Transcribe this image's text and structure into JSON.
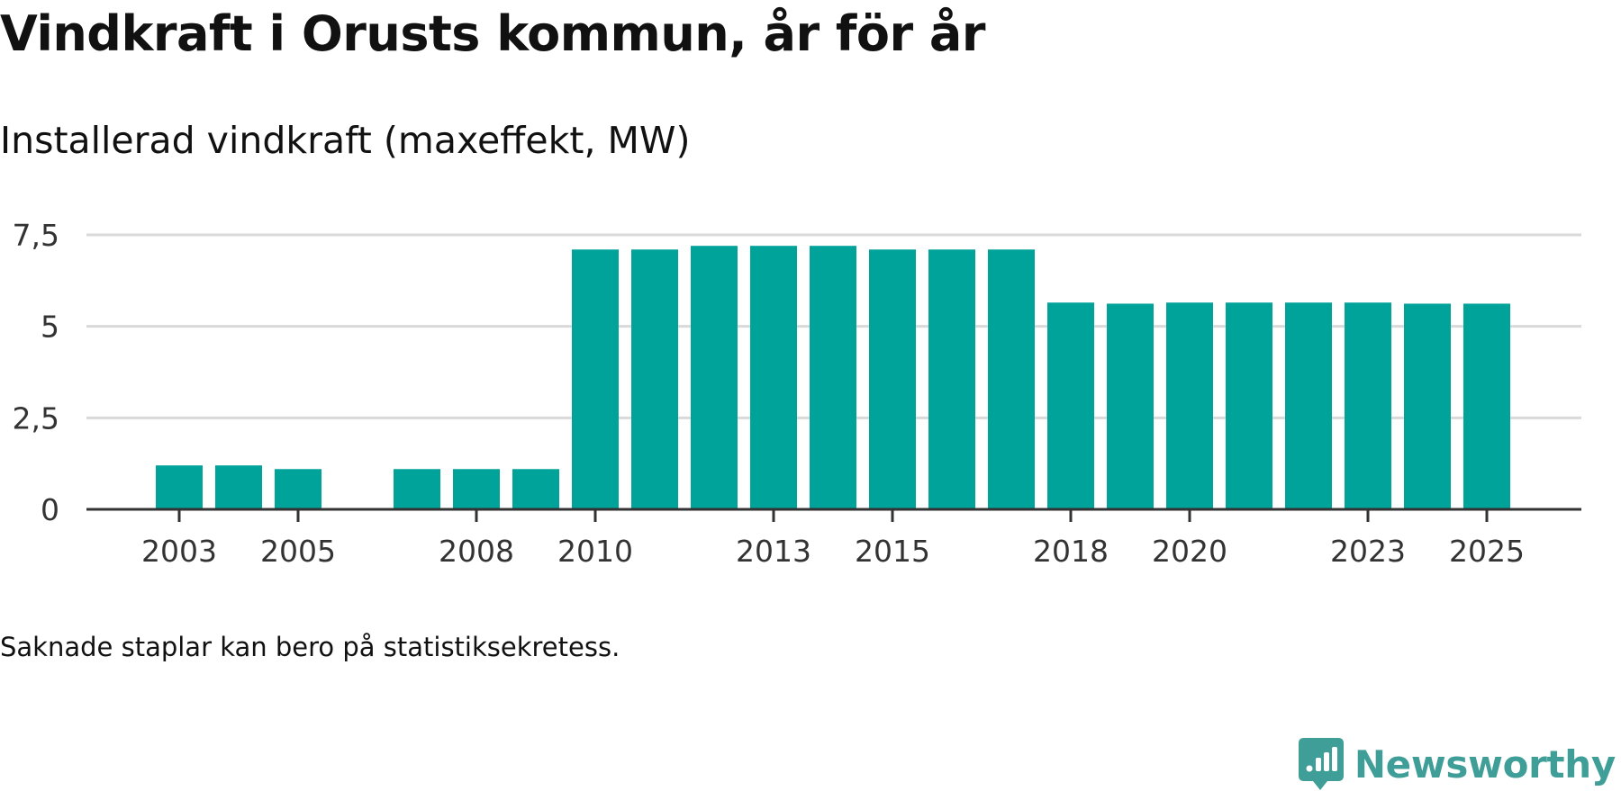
{
  "header": {
    "title": "Vindkraft i Orusts kommun, år för år",
    "subtitle": "Installerad vindkraft (maxeffekt, MW)"
  },
  "footer": {
    "note": "Saknade staplar kan bero på statistiksekretess.",
    "brand": "Newsworthy",
    "brand_icon": "newsworthy-logo-icon"
  },
  "colors": {
    "bar": "#00a39a",
    "grid": "#d9d9d9",
    "axis": "#333333",
    "brand": "#3f9f98"
  },
  "chart_data": {
    "type": "bar",
    "title": "Vindkraft i Orusts kommun, år för år",
    "subtitle": "Installerad vindkraft (maxeffekt, MW)",
    "xlabel": "",
    "ylabel": "",
    "categories": [
      "2003",
      "2004",
      "2005",
      "2006",
      "2007",
      "2008",
      "2009",
      "2010",
      "2011",
      "2012",
      "2013",
      "2014",
      "2015",
      "2016",
      "2017",
      "2018",
      "2019",
      "2020",
      "2021",
      "2022",
      "2023",
      "2024",
      "2025"
    ],
    "values": [
      1.2,
      1.2,
      1.1,
      null,
      1.1,
      1.1,
      1.1,
      7.1,
      7.1,
      7.2,
      7.2,
      7.2,
      7.1,
      7.1,
      7.1,
      5.65,
      5.62,
      5.65,
      5.65,
      5.65,
      5.65,
      5.62,
      5.62
    ],
    "x_tick_labels": [
      "2003",
      "2005",
      "2008",
      "2010",
      "2013",
      "2015",
      "2018",
      "2020",
      "2023",
      "2025"
    ],
    "y_ticks": [
      0,
      2.5,
      5,
      7.5
    ],
    "y_tick_labels": [
      "0",
      "2,5",
      "5",
      "7,5"
    ],
    "ylim": [
      0,
      7.5
    ],
    "grid": true,
    "legend": "none"
  }
}
